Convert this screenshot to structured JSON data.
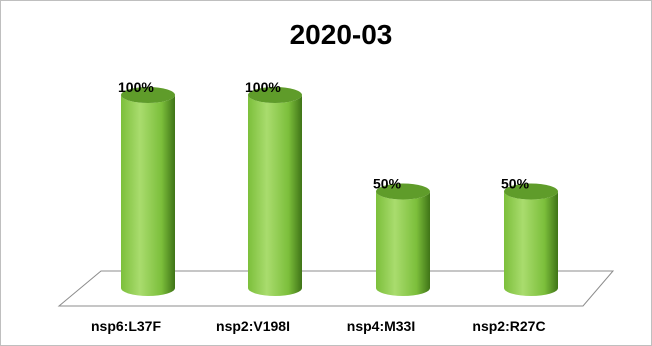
{
  "chart_data": {
    "type": "bar",
    "style": "3d-cylinder",
    "title": "2020-03",
    "categories": [
      "nsp6:L37F",
      "nsp2:V198I",
      "nsp4:M33I",
      "nsp2:R27C"
    ],
    "values": [
      100,
      100,
      50,
      50
    ],
    "data_labels": [
      "100%",
      "100%",
      "50%",
      "50%"
    ],
    "ylim": [
      0,
      100
    ],
    "grid": false,
    "legend": "none",
    "colors": {
      "bar_light": "#a9dc6e",
      "bar_mid": "#7cbf3b",
      "bar_dark": "#3f7417",
      "bar_top": "#5f9c2a",
      "floor_fill": "#ffffff",
      "floor_stroke": "#8c8c8c",
      "frame_border": "#bfbfbf"
    }
  }
}
